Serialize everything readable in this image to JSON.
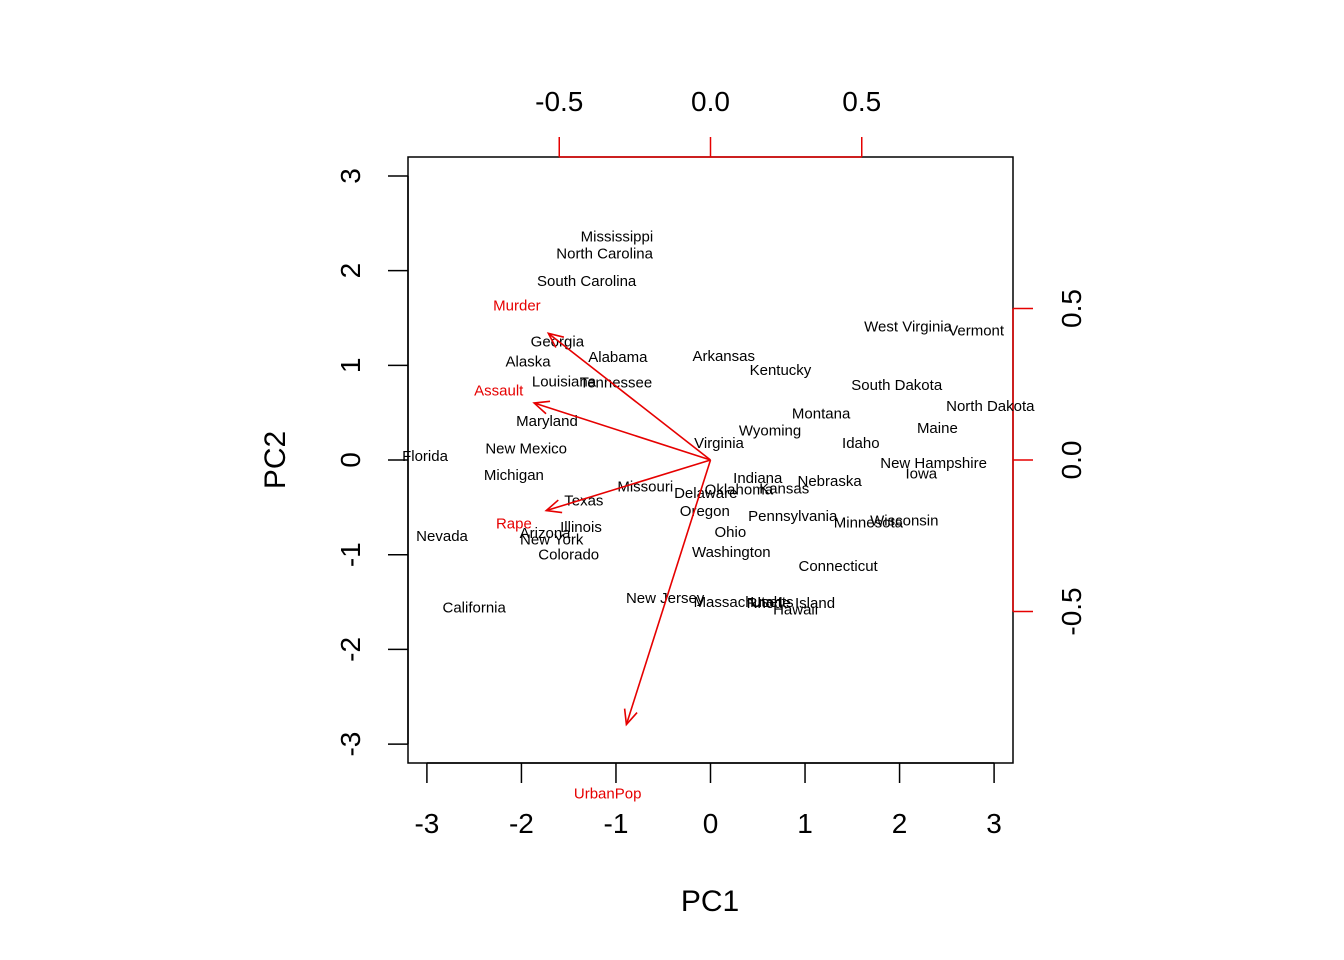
{
  "chart_data": {
    "type": "scatter",
    "subtype": "biplot",
    "title": "",
    "xlabel": "PC1",
    "ylabel": "PC2",
    "xlim": [
      -3.2,
      3.2
    ],
    "ylim": [
      -3.2,
      3.2
    ],
    "x_ticks": [
      "-3",
      "-2",
      "-1",
      "0",
      "1",
      "2",
      "3"
    ],
    "y_ticks": [
      "-3",
      "-2",
      "-1",
      "0",
      "1",
      "2",
      "3"
    ],
    "loading_lim": [
      -1.0,
      1.0
    ],
    "loading_ticks": [
      "-0.5",
      "0.0",
      "0.5"
    ],
    "loading_color": "#e60000",
    "point_color": "#000000",
    "grid": false,
    "states": [
      {
        "label": "Mississippi",
        "x": -0.99,
        "y": 2.36
      },
      {
        "label": "North Carolina",
        "x": -1.12,
        "y": 2.18
      },
      {
        "label": "South Carolina",
        "x": -1.31,
        "y": 1.89
      },
      {
        "label": "Georgia",
        "x": -1.62,
        "y": 1.25
      },
      {
        "label": "Alabama",
        "x": -0.98,
        "y": 1.09
      },
      {
        "label": "Alaska",
        "x": -1.93,
        "y": 1.04
      },
      {
        "label": "Louisiana",
        "x": -1.55,
        "y": 0.83
      },
      {
        "label": "Tennessee",
        "x": -1.0,
        "y": 0.82
      },
      {
        "label": "Arkansas",
        "x": 0.14,
        "y": 1.1
      },
      {
        "label": "Kentucky",
        "x": 0.74,
        "y": 0.95
      },
      {
        "label": "West Virginia",
        "x": 2.09,
        "y": 1.41
      },
      {
        "label": "Vermont",
        "x": 2.81,
        "y": 1.37
      },
      {
        "label": "South Dakota",
        "x": 1.97,
        "y": 0.79
      },
      {
        "label": "North Dakota",
        "x": 2.96,
        "y": 0.57
      },
      {
        "label": "Montana",
        "x": 1.17,
        "y": 0.49
      },
      {
        "label": "Maine",
        "x": 2.4,
        "y": 0.34
      },
      {
        "label": "Maryland",
        "x": -1.73,
        "y": 0.41
      },
      {
        "label": "Wyoming",
        "x": 0.63,
        "y": 0.31
      },
      {
        "label": "Idaho",
        "x": 1.59,
        "y": 0.18
      },
      {
        "label": "Virginia",
        "x": 0.09,
        "y": 0.18
      },
      {
        "label": "New Mexico",
        "x": -1.95,
        "y": 0.12
      },
      {
        "label": "Florida",
        "x": -3.02,
        "y": 0.04
      },
      {
        "label": "New Hampshire",
        "x": 2.36,
        "y": -0.03
      },
      {
        "label": "Iowa",
        "x": 2.23,
        "y": -0.14
      },
      {
        "label": "Michigan",
        "x": -2.08,
        "y": -0.16
      },
      {
        "label": "Indiana",
        "x": 0.5,
        "y": -0.19
      },
      {
        "label": "Nebraska",
        "x": 1.26,
        "y": -0.22
      },
      {
        "label": "Missouri",
        "x": -0.69,
        "y": -0.28
      },
      {
        "label": "Oklahoma",
        "x": 0.3,
        "y": -0.31
      },
      {
        "label": "Kansas",
        "x": 0.78,
        "y": -0.3
      },
      {
        "label": "Delaware",
        "x": -0.05,
        "y": -0.35
      },
      {
        "label": "Texas",
        "x": -1.34,
        "y": -0.43
      },
      {
        "label": "Oregon",
        "x": -0.06,
        "y": -0.54
      },
      {
        "label": "Pennsylvania",
        "x": 0.87,
        "y": -0.59
      },
      {
        "label": "Minnesota",
        "x": 1.67,
        "y": -0.66
      },
      {
        "label": "Wisconsin",
        "x": 2.05,
        "y": -0.64
      },
      {
        "label": "Illinois",
        "x": -1.37,
        "y": -0.71
      },
      {
        "label": "Arizona",
        "x": -1.75,
        "y": -0.77
      },
      {
        "label": "Ohio",
        "x": 0.21,
        "y": -0.76
      },
      {
        "label": "Nevada",
        "x": -2.84,
        "y": -0.8
      },
      {
        "label": "New York",
        "x": -1.68,
        "y": -0.84
      },
      {
        "label": "Colorado",
        "x": -1.5,
        "y": -1.0
      },
      {
        "label": "Washington",
        "x": 0.22,
        "y": -0.97
      },
      {
        "label": "Connecticut",
        "x": 1.35,
        "y": -1.12
      },
      {
        "label": "New Jersey",
        "x": -0.48,
        "y": -1.46
      },
      {
        "label": "Massachusetts",
        "x": 0.35,
        "y": -1.5
      },
      {
        "label": "Utah",
        "x": 0.59,
        "y": -1.5
      },
      {
        "label": "Rhode Island",
        "x": 0.85,
        "y": -1.51
      },
      {
        "label": "Hawaii",
        "x": 0.9,
        "y": -1.58
      },
      {
        "label": "California",
        "x": -2.5,
        "y": -1.56
      }
    ],
    "loadings": [
      {
        "label": "Murder",
        "x": -0.536,
        "y": 0.418,
        "label_x": -0.64,
        "label_y": 0.51
      },
      {
        "label": "Assault",
        "x": -0.583,
        "y": 0.188,
        "label_x": -0.7,
        "label_y": 0.23
      },
      {
        "label": "UrbanPop",
        "x": -0.278,
        "y": -0.873,
        "label_x": -0.34,
        "label_y": -1.1
      },
      {
        "label": "Rape",
        "x": -0.543,
        "y": -0.167,
        "label_x": -0.65,
        "label_y": -0.21
      }
    ]
  }
}
